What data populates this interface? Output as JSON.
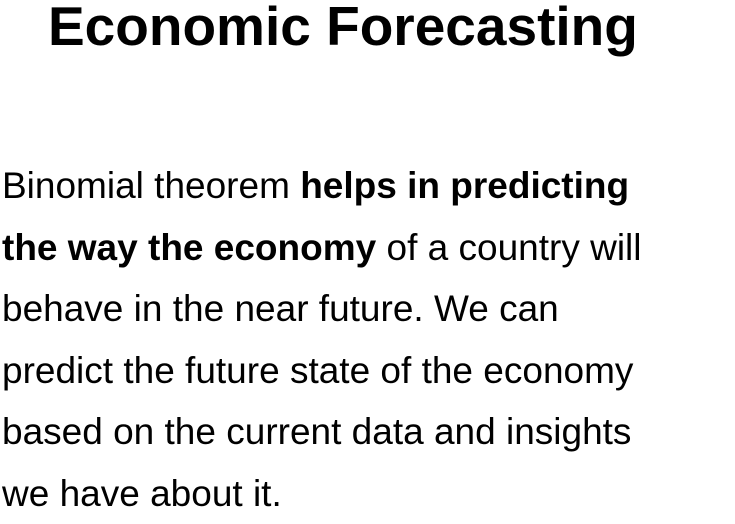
{
  "title": "Economic Forecasting",
  "paragraph": {
    "line1": {
      "normal": "Binomial theorem ",
      "bold": "helps in predicting"
    },
    "line2": {
      "bold": "the way the economy",
      "normal": " of a country will"
    },
    "line3": "behave in the near future. We can",
    "line4": "predict the future state of the economy",
    "line5": "based on the current data and insights",
    "line6": "we have about it."
  }
}
